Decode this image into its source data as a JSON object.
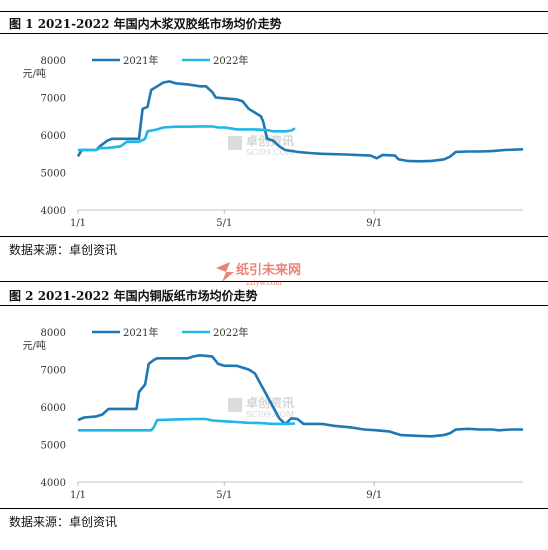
{
  "watermarks": {
    "center_brand": "纸引未来网",
    "center_url": "zzlyw.com",
    "chart_brand": "卓创资讯",
    "chart_brand_en": "SCI99.COM"
  },
  "colors": {
    "series_2021": "#1f77b4",
    "series_2022": "#1fb6e8",
    "axis": "#bfbfbf",
    "watermark": "#e8857a"
  },
  "chart_data": [
    {
      "type": "line",
      "title": "图 1   2021-2022 年国内木浆双胶纸市场均价走势",
      "ylabel": "元/吨",
      "source": "数据来源：卓创资讯",
      "ylim": [
        4000,
        8000
      ],
      "yticks": [
        4000,
        5000,
        6000,
        7000,
        8000
      ],
      "xticks": [
        {
          "label": "1/1",
          "day": 0
        },
        {
          "label": "5/1",
          "day": 120
        },
        {
          "label": "9/1",
          "day": 243
        }
      ],
      "x_range_days": [
        0,
        365
      ],
      "legend_position": "top-left",
      "series": [
        {
          "name": "2021年",
          "points": [
            [
              0,
              5430
            ],
            [
              3,
              5600
            ],
            [
              6,
              5600
            ],
            [
              15,
              5600
            ],
            [
              18,
              5700
            ],
            [
              24,
              5850
            ],
            [
              28,
              5900
            ],
            [
              40,
              5900
            ],
            [
              50,
              5900
            ],
            [
              53,
              6700
            ],
            [
              57,
              6750
            ],
            [
              60,
              7200
            ],
            [
              65,
              7300
            ],
            [
              70,
              7400
            ],
            [
              75,
              7430
            ],
            [
              80,
              7380
            ],
            [
              90,
              7350
            ],
            [
              100,
              7300
            ],
            [
              105,
              7300
            ],
            [
              110,
              7150
            ],
            [
              113,
              7000
            ],
            [
              120,
              6980
            ],
            [
              130,
              6950
            ],
            [
              135,
              6900
            ],
            [
              140,
              6700
            ],
            [
              145,
              6600
            ],
            [
              150,
              6500
            ],
            [
              152,
              6350
            ],
            [
              155,
              5900
            ],
            [
              160,
              5850
            ],
            [
              165,
              5700
            ],
            [
              170,
              5600
            ],
            [
              180,
              5550
            ],
            [
              190,
              5520
            ],
            [
              200,
              5500
            ],
            [
              220,
              5480
            ],
            [
              240,
              5450
            ],
            [
              245,
              5380
            ],
            [
              250,
              5470
            ],
            [
              260,
              5450
            ],
            [
              263,
              5350
            ],
            [
              270,
              5310
            ],
            [
              280,
              5300
            ],
            [
              290,
              5310
            ],
            [
              300,
              5350
            ],
            [
              305,
              5420
            ],
            [
              310,
              5550
            ],
            [
              320,
              5560
            ],
            [
              330,
              5560
            ],
            [
              340,
              5570
            ],
            [
              350,
              5600
            ],
            [
              365,
              5620
            ]
          ]
        },
        {
          "name": "2022年",
          "points": [
            [
              0,
              5600
            ],
            [
              15,
              5600
            ],
            [
              18,
              5650
            ],
            [
              24,
              5650
            ],
            [
              35,
              5700
            ],
            [
              40,
              5820
            ],
            [
              50,
              5820
            ],
            [
              55,
              5900
            ],
            [
              57,
              6100
            ],
            [
              65,
              6150
            ],
            [
              70,
              6200
            ],
            [
              80,
              6220
            ],
            [
              90,
              6220
            ],
            [
              100,
              6230
            ],
            [
              110,
              6230
            ],
            [
              115,
              6200
            ],
            [
              120,
              6200
            ],
            [
              125,
              6180
            ],
            [
              130,
              6150
            ],
            [
              145,
              6150
            ],
            [
              155,
              6130
            ],
            [
              160,
              6100
            ],
            [
              165,
              6100
            ],
            [
              170,
              6100
            ],
            [
              175,
              6120
            ],
            [
              178,
              6180
            ]
          ]
        }
      ]
    },
    {
      "type": "line",
      "title": "图 2   2021-2022 年国内铜版纸市场均价走势",
      "ylabel": "元/吨",
      "source": "数据来源：卓创资讯",
      "ylim": [
        4000,
        8000
      ],
      "yticks": [
        4000,
        5000,
        6000,
        7000,
        8000
      ],
      "xticks": [
        {
          "label": "1/1",
          "day": 0
        },
        {
          "label": "5/1",
          "day": 120
        },
        {
          "label": "9/1",
          "day": 243
        }
      ],
      "x_range_days": [
        0,
        365
      ],
      "legend_position": "top-left",
      "series": [
        {
          "name": "2021年",
          "points": [
            [
              0,
              5650
            ],
            [
              5,
              5720
            ],
            [
              15,
              5750
            ],
            [
              20,
              5800
            ],
            [
              25,
              5950
            ],
            [
              40,
              5950
            ],
            [
              48,
              5950
            ],
            [
              50,
              6400
            ],
            [
              55,
              6600
            ],
            [
              58,
              7150
            ],
            [
              62,
              7250
            ],
            [
              65,
              7300
            ],
            [
              80,
              7300
            ],
            [
              90,
              7300
            ],
            [
              95,
              7350
            ],
            [
              100,
              7380
            ],
            [
              110,
              7350
            ],
            [
              115,
              7150
            ],
            [
              120,
              7100
            ],
            [
              130,
              7100
            ],
            [
              140,
              7000
            ],
            [
              145,
              6900
            ],
            [
              150,
              6600
            ],
            [
              155,
              6300
            ],
            [
              160,
              6000
            ],
            [
              165,
              5700
            ],
            [
              170,
              5550
            ],
            [
              175,
              5700
            ],
            [
              180,
              5680
            ],
            [
              185,
              5550
            ],
            [
              200,
              5550
            ],
            [
              210,
              5500
            ],
            [
              225,
              5450
            ],
            [
              235,
              5400
            ],
            [
              245,
              5380
            ],
            [
              255,
              5350
            ],
            [
              265,
              5250
            ],
            [
              280,
              5230
            ],
            [
              290,
              5220
            ],
            [
              300,
              5250
            ],
            [
              305,
              5300
            ],
            [
              310,
              5400
            ],
            [
              320,
              5420
            ],
            [
              330,
              5400
            ],
            [
              340,
              5400
            ],
            [
              345,
              5380
            ],
            [
              355,
              5400
            ],
            [
              365,
              5400
            ]
          ]
        },
        {
          "name": "2022年",
          "points": [
            [
              0,
              5380
            ],
            [
              20,
              5380
            ],
            [
              40,
              5380
            ],
            [
              60,
              5380
            ],
            [
              62,
              5450
            ],
            [
              65,
              5650
            ],
            [
              80,
              5670
            ],
            [
              95,
              5680
            ],
            [
              105,
              5680
            ],
            [
              110,
              5640
            ],
            [
              120,
              5620
            ],
            [
              130,
              5600
            ],
            [
              140,
              5580
            ],
            [
              150,
              5570
            ],
            [
              155,
              5560
            ],
            [
              160,
              5550
            ],
            [
              170,
              5550
            ],
            [
              178,
              5560
            ]
          ]
        }
      ]
    }
  ]
}
